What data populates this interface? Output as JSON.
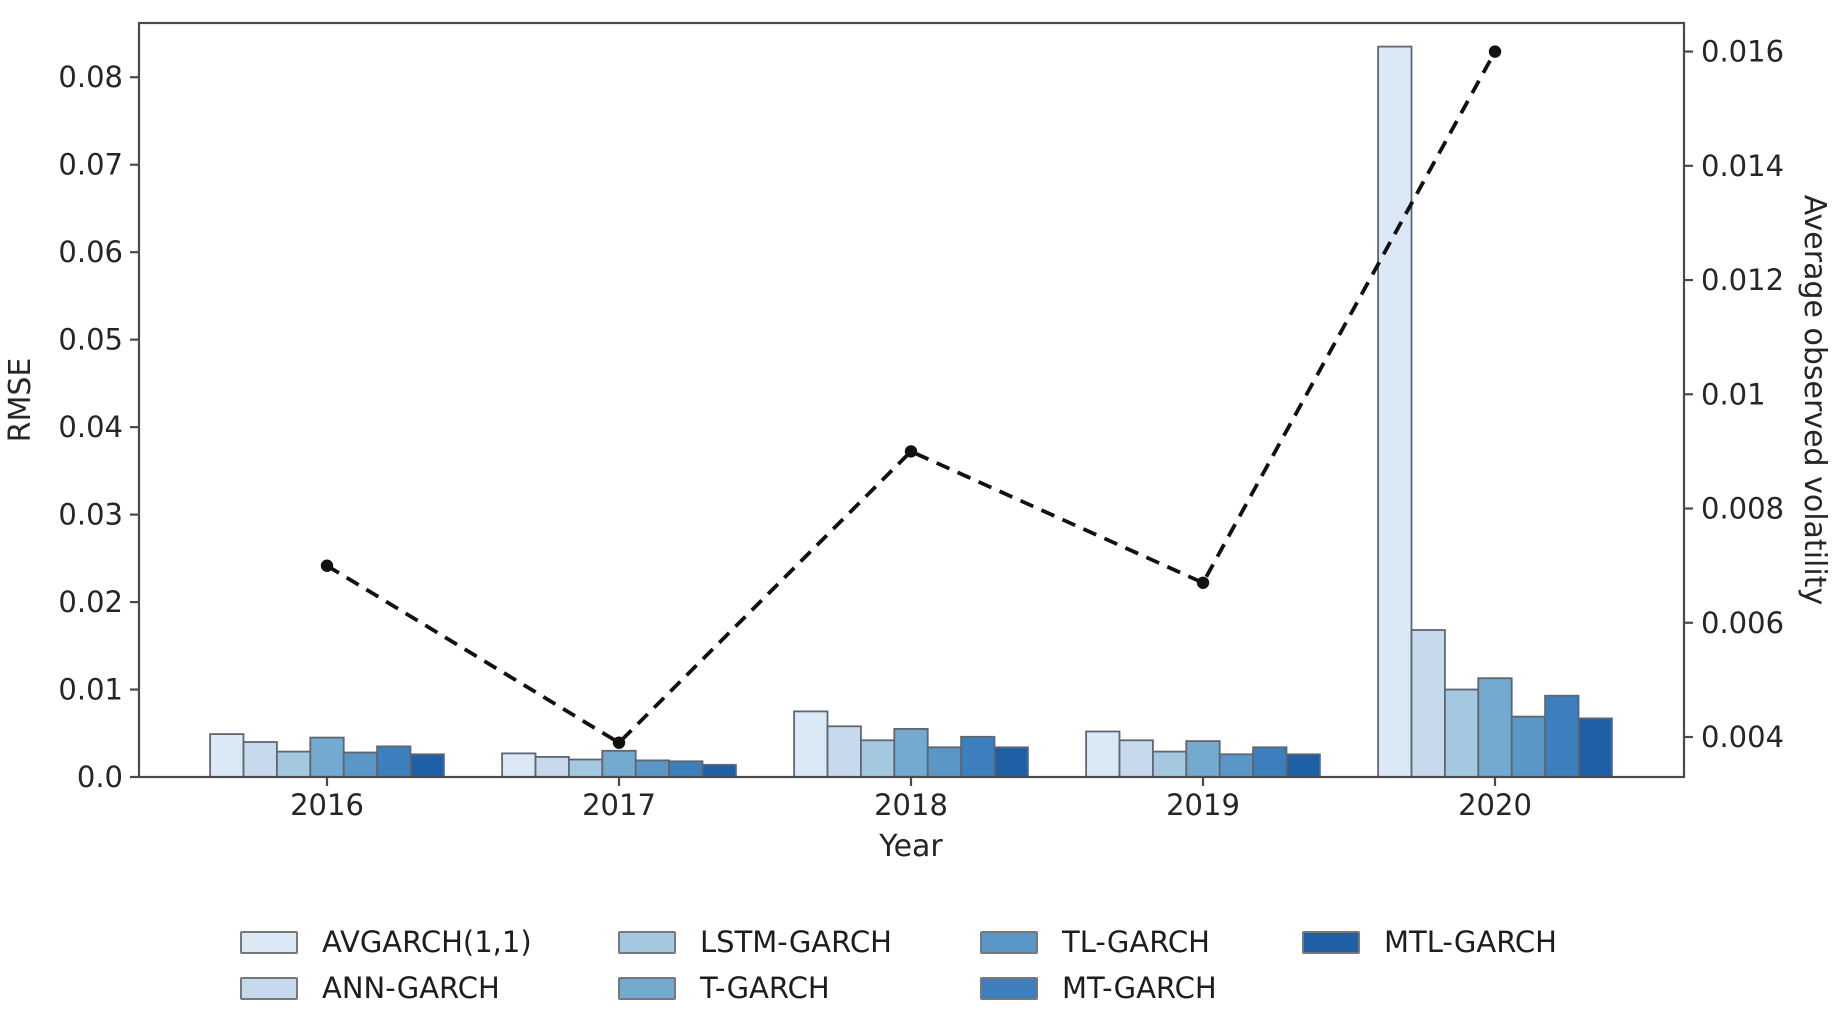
{
  "chart_data": {
    "type": "bar",
    "title": "",
    "categories": [
      "2016",
      "2017",
      "2018",
      "2019",
      "2020"
    ],
    "series": [
      {
        "name": "AVGARCH(1,1)",
        "color": "#dbe9f6",
        "values": [
          0.0049,
          0.0027,
          0.0075,
          0.0052,
          0.0835
        ]
      },
      {
        "name": "ANN-GARCH",
        "color": "#c7d9ec",
        "values": [
          0.004,
          0.0023,
          0.0058,
          0.0042,
          0.0168
        ]
      },
      {
        "name": "LSTM-GARCH",
        "color": "#a5c8e1",
        "values": [
          0.0029,
          0.002,
          0.0042,
          0.0029,
          0.01
        ]
      },
      {
        "name": "T-GARCH",
        "color": "#74a9d0",
        "values": [
          0.0045,
          0.003,
          0.0055,
          0.0041,
          0.0113
        ]
      },
      {
        "name": "TL-GARCH",
        "color": "#5b97c6",
        "values": [
          0.0028,
          0.0019,
          0.0034,
          0.0026,
          0.0069
        ]
      },
      {
        "name": "MT-GARCH",
        "color": "#3d7fbc",
        "values": [
          0.0035,
          0.0018,
          0.0046,
          0.0034,
          0.0093
        ]
      },
      {
        "name": "MTL-GARCH",
        "color": "#1f5fa6",
        "values": [
          0.0026,
          0.0014,
          0.0034,
          0.0026,
          0.0067
        ]
      }
    ],
    "line_series": {
      "name": "Average observed volatility",
      "axis": "right",
      "style": "dashed",
      "color": "#111111",
      "values": [
        0.007,
        0.0039,
        0.009,
        0.0067,
        0.016
      ]
    },
    "xlabel": "Year",
    "ylabel_left": "RMSE",
    "ylabel_right": "Average observed volatility",
    "yticks_left": [
      "0.0",
      "0.01",
      "0.02",
      "0.03",
      "0.04",
      "0.05",
      "0.06",
      "0.07",
      "0.08"
    ],
    "yticks_right": [
      "0.004",
      "0.006",
      "0.008",
      "0.01",
      "0.012",
      "0.014",
      "0.016"
    ],
    "ylim_left": [
      0,
      0.0862
    ],
    "ylim_right": [
      0.0033,
      0.0165
    ],
    "grid": false,
    "legend_position": "below",
    "legend_columns": [
      [
        "AVGARCH(1,1)",
        "ANN-GARCH"
      ],
      [
        "LSTM-GARCH",
        "T-GARCH"
      ],
      [
        "TL-GARCH",
        "MT-GARCH"
      ],
      [
        "MTL-GARCH"
      ]
    ]
  },
  "style_tokens": {
    "bar_edge_color": "#5d6672",
    "axis_color": "#4a4a4a",
    "tick_text_color": "#262626"
  }
}
